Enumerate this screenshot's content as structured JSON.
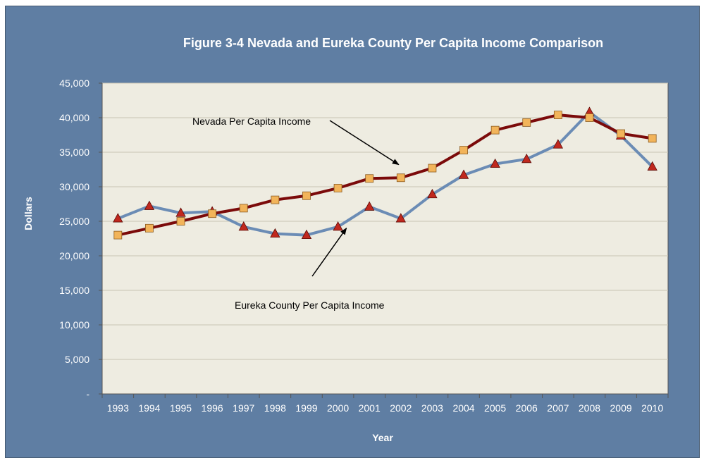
{
  "chart_data": {
    "type": "line",
    "title": "Figure 3-4 Nevada and Eureka County Per Capita Income Comparison",
    "xlabel": "Year",
    "ylabel": "Dollars",
    "ylim": [
      0,
      45000
    ],
    "yticks": [
      0,
      5000,
      10000,
      15000,
      20000,
      25000,
      30000,
      35000,
      40000,
      45000
    ],
    "ytick_labels": [
      "-",
      "5,000",
      "10,000",
      "15,000",
      "20,000",
      "25,000",
      "30,000",
      "35,000",
      "40,000",
      "45,000"
    ],
    "categories": [
      "1993",
      "1994",
      "1995",
      "1996",
      "1997",
      "1998",
      "1999",
      "2000",
      "2001",
      "2002",
      "2003",
      "2004",
      "2005",
      "2006",
      "2007",
      "2008",
      "2009",
      "2010"
    ],
    "grid": true,
    "legend": "none",
    "series": [
      {
        "name": "Eureka County Per Capita Income",
        "color": "#6b8cb5",
        "marker": "triangle",
        "marker_color": "#c0281e",
        "values": [
          25400,
          27200,
          26200,
          26400,
          24200,
          23200,
          23000,
          24200,
          27100,
          25400,
          28900,
          31700,
          33300,
          34000,
          36100,
          40800,
          37400,
          32900
        ]
      },
      {
        "name": "Nevada Per Capita Income",
        "color": "#7b0a0a",
        "marker": "square",
        "marker_color": "#f2b45a",
        "values": [
          23000,
          24000,
          25000,
          26100,
          26900,
          28100,
          28700,
          29800,
          31200,
          31300,
          32700,
          35300,
          38200,
          39300,
          40400,
          40000,
          37700,
          37000
        ]
      }
    ],
    "annotations": [
      {
        "text": "Nevada Per Capita Income",
        "target_year": "2002",
        "target_value": 33200
      },
      {
        "text": "Eureka County Per Capita Income",
        "target_year": "2000",
        "target_value": 24000
      }
    ]
  },
  "colors": {
    "frame_bg": "#5f7ea3",
    "plot_bg": "#eeece1",
    "grid": "#c8c4b4",
    "axis": "#555555",
    "text": "#ffffff",
    "annotation_text": "#000000"
  }
}
